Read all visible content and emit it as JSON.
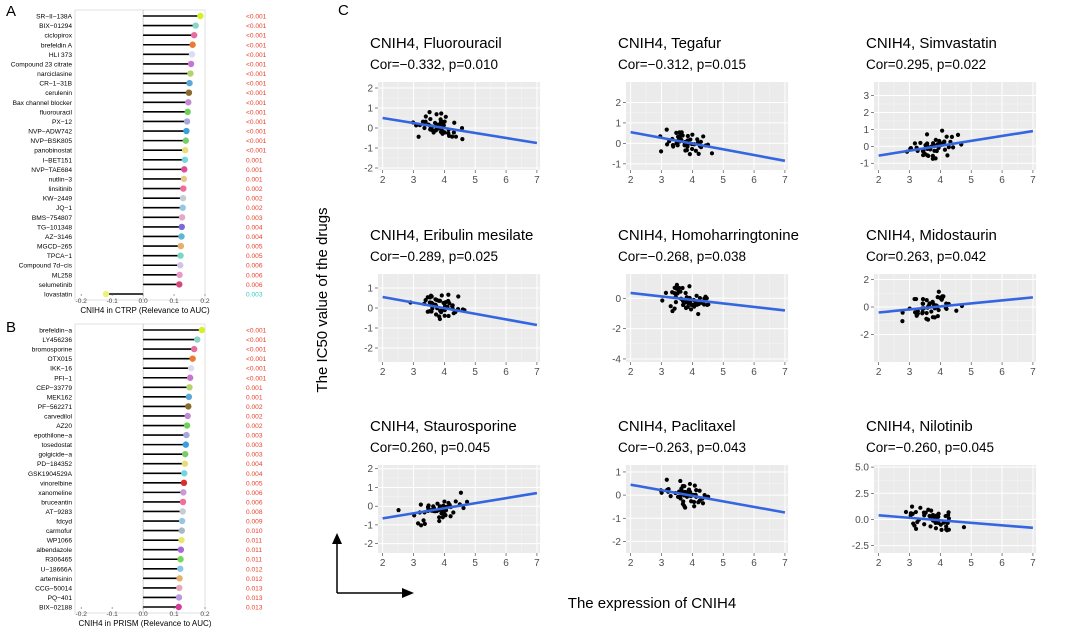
{
  "chart_data": {
    "lollipops": [
      {
        "panel_label": "A",
        "type": "lollipop",
        "xlabel": "CNIH4 in CTRP (Relevance to AUC)",
        "xlim": [
          -0.22,
          0.2
        ],
        "xticks": [
          -0.2,
          -0.1,
          0.0,
          0.1,
          0.2
        ],
        "xtick_labels": [
          "-0.2",
          "-0.1",
          "0.0",
          "0.1",
          "0.2"
        ],
        "items": [
          {
            "name": "SR−II−138A",
            "value": 0.185,
            "p": "<0.001",
            "color": "#d6ef2b",
            "pcolor": "#e8412c"
          },
          {
            "name": "BIX−01294",
            "value": 0.17,
            "p": "<0.001",
            "color": "#8ad5c8",
            "pcolor": "#e8412c"
          },
          {
            "name": "ciclopirox",
            "value": 0.165,
            "p": "<0.001",
            "color": "#e66e9c",
            "pcolor": "#e8412c"
          },
          {
            "name": "brefeldin A",
            "value": 0.16,
            "p": "<0.001",
            "color": "#ea7c32",
            "pcolor": "#e8412c"
          },
          {
            "name": "HLI 373",
            "value": 0.158,
            "p": "<0.001",
            "color": "#dcdcf0",
            "pcolor": "#e8412c"
          },
          {
            "name": "Compound 23 citrate",
            "value": 0.155,
            "p": "<0.001",
            "color": "#c875d2",
            "pcolor": "#e8412c"
          },
          {
            "name": "narciclasine",
            "value": 0.153,
            "p": "<0.001",
            "color": "#b8d26e",
            "pcolor": "#e8412c"
          },
          {
            "name": "CR−1−31B",
            "value": 0.15,
            "p": "<0.001",
            "color": "#5aa8d8",
            "pcolor": "#e8412c"
          },
          {
            "name": "cerulenin",
            "value": 0.148,
            "p": "<0.001",
            "color": "#8a6a2e",
            "pcolor": "#e8412c"
          },
          {
            "name": "Bax channel blocker",
            "value": 0.146,
            "p": "<0.001",
            "color": "#c28ad6",
            "pcolor": "#e8412c"
          },
          {
            "name": "fluorouracil",
            "value": 0.144,
            "p": "<0.001",
            "color": "#6fd05a",
            "pcolor": "#e8412c"
          },
          {
            "name": "PX−12",
            "value": 0.142,
            "p": "<0.001",
            "color": "#a8a8d8",
            "pcolor": "#e8412c"
          },
          {
            "name": "NVP−ADW742",
            "value": 0.14,
            "p": "<0.001",
            "color": "#3a9fe0",
            "pcolor": "#e8412c"
          },
          {
            "name": "NVP−BSK805",
            "value": 0.138,
            "p": "<0.001",
            "color": "#7acd6a",
            "pcolor": "#e8412c"
          },
          {
            "name": "panobinostat",
            "value": 0.136,
            "p": "<0.001",
            "color": "#e6dc78",
            "pcolor": "#e8412c"
          },
          {
            "name": "I−BET151",
            "value": 0.135,
            "p": "0.001",
            "color": "#72d6e0",
            "pcolor": "#e8412c"
          },
          {
            "name": "NVP−TAE684",
            "value": 0.133,
            "p": "0.001",
            "color": "#d94e9a",
            "pcolor": "#e8412c"
          },
          {
            "name": "nutlin−3",
            "value": 0.132,
            "p": "0.001",
            "color": "#e6c88a",
            "pcolor": "#e8412c"
          },
          {
            "name": "linsitinib",
            "value": 0.13,
            "p": "0.002",
            "color": "#f06e9a",
            "pcolor": "#e8412c"
          },
          {
            "name": "KW−2449",
            "value": 0.129,
            "p": "0.002",
            "color": "#c4ccd4",
            "pcolor": "#e8412c"
          },
          {
            "name": "JQ−1",
            "value": 0.128,
            "p": "0.002",
            "color": "#96c6e6",
            "pcolor": "#e8412c"
          },
          {
            "name": "BMS−754807",
            "value": 0.126,
            "p": "0.003",
            "color": "#e6a8c8",
            "pcolor": "#e8412c"
          },
          {
            "name": "TG−101348",
            "value": 0.125,
            "p": "0.004",
            "color": "#7a6ad8",
            "pcolor": "#e8412c"
          },
          {
            "name": "AZ−3146",
            "value": 0.124,
            "p": "0.004",
            "color": "#5ab8d6",
            "pcolor": "#e8412c"
          },
          {
            "name": "MGCD−265",
            "value": 0.122,
            "p": "0.005",
            "color": "#e6b06e",
            "pcolor": "#e8412c"
          },
          {
            "name": "TPCA−1",
            "value": 0.121,
            "p": "0.005",
            "color": "#78d6c4",
            "pcolor": "#e8412c"
          },
          {
            "name": "Compound 7d−cis",
            "value": 0.12,
            "p": "0.006",
            "color": "#d4c2e8",
            "pcolor": "#e8412c"
          },
          {
            "name": "ML258",
            "value": 0.118,
            "p": "0.006",
            "color": "#e89ac8",
            "pcolor": "#e8412c"
          },
          {
            "name": "selumetinib",
            "value": 0.117,
            "p": "0.006",
            "color": "#d64678",
            "pcolor": "#e8412c"
          },
          {
            "name": "lovastatin",
            "value": -0.12,
            "p": "0.003",
            "color": "#eef07a",
            "pcolor": "#3cc8c8"
          }
        ]
      },
      {
        "panel_label": "B",
        "type": "lollipop",
        "xlabel": "CNIH4 in PRISM (Relevance to AUC)",
        "xlim": [
          -0.22,
          0.2
        ],
        "xticks": [
          -0.2,
          -0.1,
          0.0,
          0.1,
          0.2
        ],
        "xtick_labels": [
          "-0.2",
          "-0.1",
          "0.0",
          "0.1",
          "0.2"
        ],
        "items": [
          {
            "name": "brefeldin−a",
            "value": 0.19,
            "p": "<0.001",
            "color": "#d6ef2b",
            "pcolor": "#e8412c"
          },
          {
            "name": "LY456236",
            "value": 0.175,
            "p": "<0.001",
            "color": "#8ad5c8",
            "pcolor": "#e8412c"
          },
          {
            "name": "bromosporine",
            "value": 0.165,
            "p": "<0.001",
            "color": "#e66e9c",
            "pcolor": "#e8412c"
          },
          {
            "name": "OTX015",
            "value": 0.16,
            "p": "<0.001",
            "color": "#ea7c32",
            "pcolor": "#e8412c"
          },
          {
            "name": "IKK−16",
            "value": 0.155,
            "p": "<0.001",
            "color": "#dcdcf0",
            "pcolor": "#e8412c"
          },
          {
            "name": "PFI−1",
            "value": 0.152,
            "p": "<0.001",
            "color": "#c875d2",
            "pcolor": "#e8412c"
          },
          {
            "name": "CEP−33779",
            "value": 0.15,
            "p": "0.001",
            "color": "#b8d26e",
            "pcolor": "#e8412c"
          },
          {
            "name": "MEK162",
            "value": 0.148,
            "p": "0.001",
            "color": "#5aa8d8",
            "pcolor": "#e8412c"
          },
          {
            "name": "PF−562271",
            "value": 0.146,
            "p": "0.002",
            "color": "#8a6a2e",
            "pcolor": "#e8412c"
          },
          {
            "name": "carvedilol",
            "value": 0.144,
            "p": "0.002",
            "color": "#c28ad6",
            "pcolor": "#e8412c"
          },
          {
            "name": "AZ20",
            "value": 0.142,
            "p": "0.002",
            "color": "#6fd05a",
            "pcolor": "#e8412c"
          },
          {
            "name": "epothilone−a",
            "value": 0.14,
            "p": "0.003",
            "color": "#a8a8d8",
            "pcolor": "#e8412c"
          },
          {
            "name": "tosedostat",
            "value": 0.138,
            "p": "0.003",
            "color": "#3a9fe0",
            "pcolor": "#e8412c"
          },
          {
            "name": "golgicide−a",
            "value": 0.136,
            "p": "0.003",
            "color": "#7acd6a",
            "pcolor": "#e8412c"
          },
          {
            "name": "PD−184352",
            "value": 0.135,
            "p": "0.004",
            "color": "#e6dc78",
            "pcolor": "#e8412c"
          },
          {
            "name": "GSK1904529A",
            "value": 0.133,
            "p": "0.004",
            "color": "#72d6e0",
            "pcolor": "#e8412c"
          },
          {
            "name": "vinorelbine",
            "value": 0.132,
            "p": "0.005",
            "color": "#d92e2e",
            "pcolor": "#e8412c"
          },
          {
            "name": "xanomeline",
            "value": 0.13,
            "p": "0.006",
            "color": "#c89ad6",
            "pcolor": "#e8412c"
          },
          {
            "name": "bruceantin",
            "value": 0.129,
            "p": "0.006",
            "color": "#f06e9a",
            "pcolor": "#e8412c"
          },
          {
            "name": "AT−9283",
            "value": 0.128,
            "p": "0.008",
            "color": "#c4ccd4",
            "pcolor": "#e8412c"
          },
          {
            "name": "fdcyd",
            "value": 0.126,
            "p": "0.009",
            "color": "#96c6e6",
            "pcolor": "#e8412c"
          },
          {
            "name": "carmofur",
            "value": 0.125,
            "p": "0.010",
            "color": "#a8b8c8",
            "pcolor": "#e8412c"
          },
          {
            "name": "WP1066",
            "value": 0.124,
            "p": "0.011",
            "color": "#e6e86e",
            "pcolor": "#e8412c"
          },
          {
            "name": "albendazole",
            "value": 0.122,
            "p": "0.011",
            "color": "#a86ad8",
            "pcolor": "#e8412c"
          },
          {
            "name": "R306465",
            "value": 0.121,
            "p": "0.011",
            "color": "#78d65a",
            "pcolor": "#e8412c"
          },
          {
            "name": "U−18666A",
            "value": 0.12,
            "p": "0.012",
            "color": "#8ac6e8",
            "pcolor": "#e8412c"
          },
          {
            "name": "artemisinin",
            "value": 0.118,
            "p": "0.012",
            "color": "#e6b06e",
            "pcolor": "#e8412c"
          },
          {
            "name": "CCG−50014",
            "value": 0.117,
            "p": "0.013",
            "color": "#e8a8b8",
            "pcolor": "#e8412c"
          },
          {
            "name": "PQ−401",
            "value": 0.116,
            "p": "0.013",
            "color": "#b89ae0",
            "pcolor": "#e8412c"
          },
          {
            "name": "BIX−02188",
            "value": 0.115,
            "p": "0.013",
            "color": "#d63a9a",
            "pcolor": "#e8412c"
          }
        ]
      }
    ],
    "scatter_panel": {
      "panel_label": "C",
      "ylabel": "The IC50 value of the drugs",
      "xlabel": "The expression of CNIH4",
      "plots": [
        {
          "title": "CNIH4, Fluorouracil",
          "stat": "Cor=−0.332, p=0.010",
          "xlim": [
            1.85,
            7.1
          ],
          "ylim": [
            -2.1,
            2.3
          ],
          "xticks": [
            2,
            3,
            4,
            5,
            6,
            7
          ],
          "yticks": [
            -2,
            -1,
            0,
            1,
            2
          ],
          "fit": [
            [
              2,
              0.5
            ],
            [
              7,
              -0.75
            ]
          ],
          "seed": 11
        },
        {
          "title": "CNIH4, Tegafur",
          "stat": "Cor=−0.312, p=0.015",
          "xlim": [
            1.85,
            7.1
          ],
          "ylim": [
            -1.3,
            3.0
          ],
          "xticks": [
            2,
            3,
            4,
            5,
            6,
            7
          ],
          "yticks": [
            -1,
            0,
            1,
            2
          ],
          "fit": [
            [
              2,
              0.55
            ],
            [
              7,
              -0.85
            ]
          ],
          "seed": 23
        },
        {
          "title": "CNIH4, Simvastatin",
          "stat": "Cor=0.295, p=0.022",
          "xlim": [
            1.85,
            7.1
          ],
          "ylim": [
            -1.4,
            3.8
          ],
          "xticks": [
            2,
            3,
            4,
            5,
            6,
            7
          ],
          "yticks": [
            -1,
            0,
            1,
            2,
            3
          ],
          "fit": [
            [
              2,
              -0.55
            ],
            [
              7,
              0.9
            ]
          ],
          "seed": 37
        },
        {
          "title": "CNIH4, Eribulin mesilate",
          "stat": "Cor=−0.289, p=0.025",
          "xlim": [
            1.85,
            7.1
          ],
          "ylim": [
            -2.7,
            1.7
          ],
          "xticks": [
            2,
            3,
            4,
            5,
            6,
            7
          ],
          "yticks": [
            -2,
            -1,
            0,
            1
          ],
          "fit": [
            [
              2,
              0.55
            ],
            [
              7,
              -0.85
            ]
          ],
          "seed": 41
        },
        {
          "title": "CNIH4, Homoharringtonine",
          "stat": "Cor=−0.268, p=0.038",
          "xlim": [
            1.85,
            7.1
          ],
          "ylim": [
            -4.2,
            1.6
          ],
          "xticks": [
            2,
            3,
            4,
            5,
            6,
            7
          ],
          "yticks": [
            -4,
            -2,
            0
          ],
          "fit": [
            [
              2,
              0.35
            ],
            [
              7,
              -0.8
            ]
          ],
          "seed": 53
        },
        {
          "title": "CNIH4, Midostaurin",
          "stat": "Cor=0.263, p=0.042",
          "xlim": [
            1.85,
            7.1
          ],
          "ylim": [
            -4.0,
            2.4
          ],
          "xticks": [
            2,
            3,
            4,
            5,
            6,
            7
          ],
          "yticks": [
            -2,
            0,
            2
          ],
          "fit": [
            [
              2,
              -0.4
            ],
            [
              7,
              0.7
            ]
          ],
          "seed": 67
        },
        {
          "title": "CNIH4, Staurosporine",
          "stat": "Cor=0.260, p=0.045",
          "xlim": [
            1.85,
            7.1
          ],
          "ylim": [
            -2.5,
            2.2
          ],
          "xticks": [
            2,
            3,
            4,
            5,
            6,
            7
          ],
          "yticks": [
            -2,
            -1,
            0,
            1,
            2
          ],
          "fit": [
            [
              2,
              -0.65
            ],
            [
              7,
              0.7
            ]
          ],
          "seed": 71
        },
        {
          "title": "CNIH4, Paclitaxel",
          "stat": "Cor=−0.263, p=0.043",
          "xlim": [
            1.85,
            7.1
          ],
          "ylim": [
            -2.5,
            1.3
          ],
          "xticks": [
            2,
            3,
            4,
            5,
            6,
            7
          ],
          "yticks": [
            -2,
            -1,
            0,
            1
          ],
          "fit": [
            [
              2,
              0.45
            ],
            [
              7,
              -0.75
            ]
          ],
          "seed": 83
        },
        {
          "title": "CNIH4, Nilotinib",
          "stat": "Cor=−0.260, p=0.045",
          "xlim": [
            1.85,
            7.1
          ],
          "ylim": [
            -3.2,
            5.2
          ],
          "xticks": [
            2,
            3,
            4,
            5,
            6,
            7
          ],
          "yticks": [
            -2.5,
            0,
            2.5,
            5
          ],
          "ytick_labels": [
            "-2.5",
            "0.0",
            "2.5",
            "5.0"
          ],
          "fit": [
            [
              2,
              0.4
            ],
            [
              7,
              -0.8
            ]
          ],
          "seed": 97
        }
      ]
    }
  }
}
